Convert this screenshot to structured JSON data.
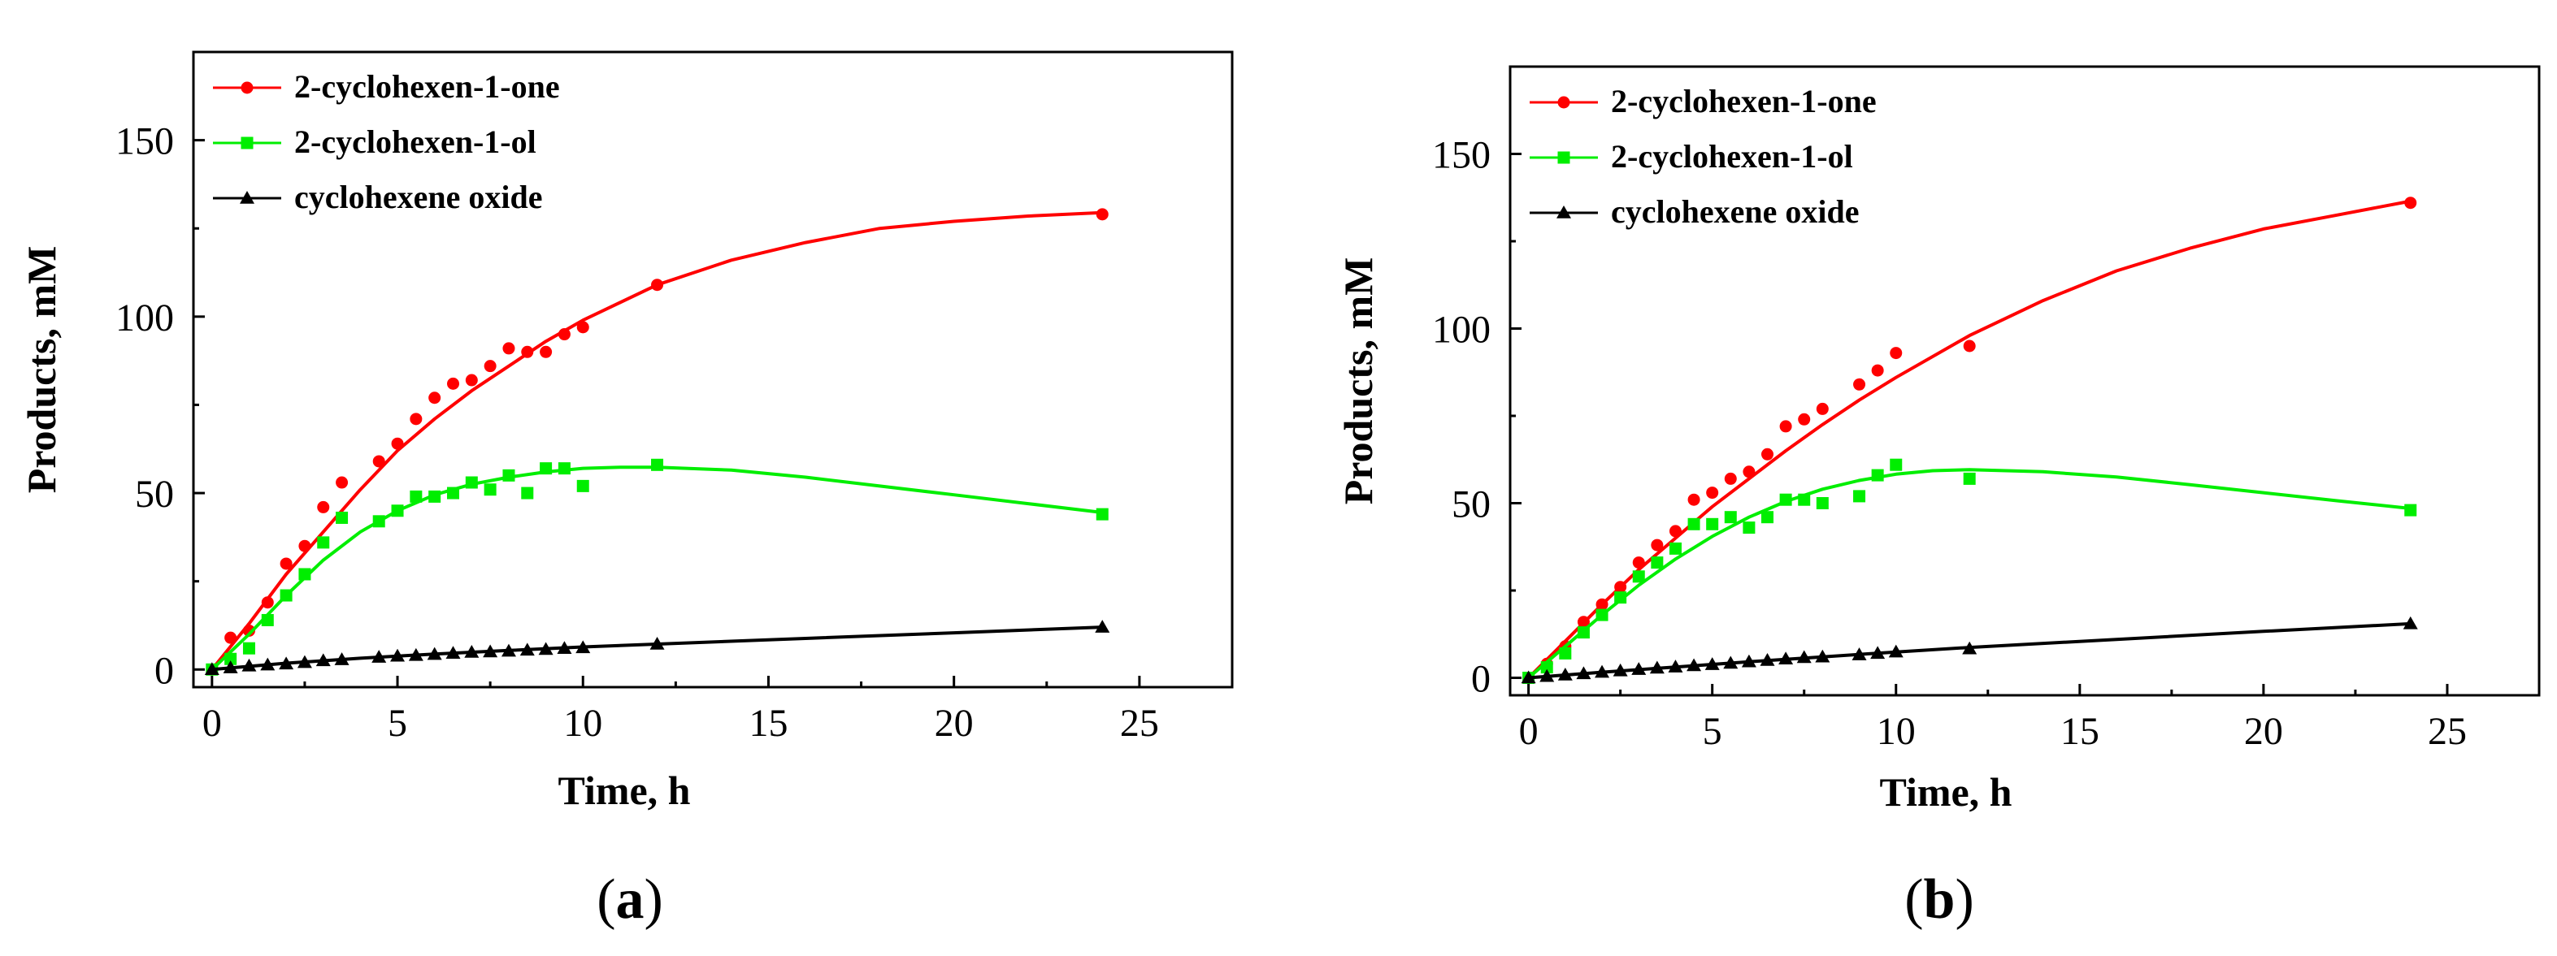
{
  "chart_data": [
    {
      "panel_label": "a",
      "type": "scatter",
      "xlabel": "Time, h",
      "ylabel": "Products, mM",
      "xlim": [
        -0.5,
        27.5
      ],
      "ylim": [
        -5,
        175
      ],
      "xticks": [
        0,
        5,
        10,
        15,
        20,
        25
      ],
      "yticks": [
        0,
        50,
        100,
        150
      ],
      "legend_position": "top-left",
      "series": [
        {
          "name": "2-cyclohexen-1-one",
          "color": "#ff0000",
          "marker": "circle",
          "x": [
            0,
            0.5,
            1,
            1.5,
            2,
            2.5,
            3,
            3.5,
            4.5,
            5,
            5.5,
            6,
            6.5,
            7,
            7.5,
            8,
            8.5,
            9,
            9.5,
            10,
            12,
            24
          ],
          "y": [
            0,
            9,
            11,
            19,
            30,
            35,
            46,
            53,
            59,
            64,
            71,
            77,
            81,
            82,
            86,
            91,
            90,
            90,
            95,
            97,
            109,
            129
          ],
          "fit_x": [
            0,
            1,
            2,
            3,
            4,
            5,
            6,
            7,
            8,
            9,
            10,
            12,
            14,
            16,
            18,
            20,
            22,
            24
          ],
          "fit_y": [
            0,
            13,
            27,
            39,
            51,
            62,
            71,
            79,
            86,
            93,
            99,
            109,
            116,
            121,
            125,
            127,
            128.5,
            129.5
          ]
        },
        {
          "name": "2-cyclohexen-1-ol",
          "color": "#00ee00",
          "marker": "square",
          "x": [
            0,
            0.5,
            1,
            1.5,
            2,
            2.5,
            3,
            3.5,
            4.5,
            5,
            5.5,
            6,
            6.5,
            7,
            7.5,
            8,
            8.5,
            9,
            9.5,
            10,
            12,
            24
          ],
          "y": [
            0,
            3,
            6,
            14,
            21,
            27,
            36,
            43,
            42,
            45,
            49,
            49,
            50,
            53,
            51,
            55,
            50,
            57,
            57,
            52,
            58,
            44
          ],
          "fit_x": [
            0,
            1,
            2,
            3,
            4,
            5,
            6,
            7,
            8,
            9,
            10,
            11,
            12,
            14,
            16,
            18,
            20,
            22,
            24
          ],
          "fit_y": [
            0,
            10,
            21,
            31,
            39,
            45,
            49.5,
            52.5,
            54.5,
            56,
            57,
            57.3,
            57.3,
            56.5,
            54.5,
            52,
            49.5,
            47,
            44.5
          ]
        },
        {
          "name": "cyclohexene oxide",
          "color": "#000000",
          "marker": "triangle",
          "x": [
            0,
            0.5,
            1,
            1.5,
            2,
            2.5,
            3,
            3.5,
            4.5,
            5,
            5.5,
            6,
            6.5,
            7,
            7.5,
            8,
            8.5,
            9,
            9.5,
            10,
            12,
            24
          ],
          "y": [
            0,
            0.5,
            1,
            1.3,
            1.6,
            2,
            2.5,
            2.8,
            3.5,
            3.8,
            4,
            4.3,
            4.6,
            4.9,
            5,
            5.2,
            5.5,
            5.7,
            6,
            6.2,
            7.2,
            12
          ],
          "fit_x": [
            0,
            2,
            4,
            6,
            8,
            10,
            12,
            16,
            20,
            24
          ],
          "fit_y": [
            0,
            1.8,
            3.2,
            4.4,
            5.4,
            6.4,
            7.2,
            8.8,
            10.4,
            12
          ]
        }
      ]
    },
    {
      "panel_label": "b",
      "type": "scatter",
      "xlabel": "Time, h",
      "ylabel": "Products, mM",
      "xlim": [
        -0.5,
        27.5
      ],
      "ylim": [
        -5,
        175
      ],
      "xticks": [
        0,
        5,
        10,
        15,
        20,
        25
      ],
      "yticks": [
        0,
        50,
        100,
        150
      ],
      "legend_position": "top-left",
      "series": [
        {
          "name": "2-cyclohexen-1-one",
          "color": "#ff0000",
          "marker": "circle",
          "x": [
            0,
            0.5,
            1,
            1.5,
            2,
            2.5,
            3,
            3.5,
            4,
            4.5,
            5,
            5.5,
            6,
            6.5,
            7,
            7.5,
            8,
            9,
            9.5,
            10,
            12,
            24
          ],
          "y": [
            0,
            4,
            9,
            16,
            21,
            26,
            33,
            38,
            42,
            51,
            53,
            57,
            59,
            64,
            72,
            74,
            77,
            84,
            88,
            93,
            95,
            136
          ],
          "fit_x": [
            0,
            1,
            2,
            3,
            4,
            5,
            6,
            7,
            8,
            9,
            10,
            12,
            14,
            16,
            18,
            20,
            22,
            24
          ],
          "fit_y": [
            0,
            10.5,
            21,
            31,
            40,
            49,
            57,
            65,
            72.5,
            79.5,
            86,
            98,
            108,
            116.5,
            123,
            128.5,
            132.5,
            136.5
          ]
        },
        {
          "name": "2-cyclohexen-1-ol",
          "color": "#00ee00",
          "marker": "square",
          "x": [
            0,
            0.5,
            1,
            1.5,
            2,
            2.5,
            3,
            3.5,
            4,
            4.5,
            5,
            5.5,
            6,
            6.5,
            7,
            7.5,
            8,
            9,
            9.5,
            10,
            12,
            24
          ],
          "y": [
            0,
            3,
            7,
            13,
            18,
            23,
            29,
            33,
            37,
            44,
            44,
            46,
            43,
            46,
            51,
            51,
            50,
            52,
            58,
            61,
            57,
            48
          ],
          "fit_x": [
            0,
            1,
            2,
            3,
            4,
            5,
            6,
            7,
            8,
            9,
            10,
            11,
            12,
            14,
            16,
            18,
            20,
            22,
            24
          ],
          "fit_y": [
            0,
            9,
            18,
            26.5,
            34,
            40.5,
            46,
            50.5,
            54,
            56.5,
            58.3,
            59.3,
            59.6,
            59,
            57.5,
            55.3,
            53,
            50.7,
            48.5
          ]
        },
        {
          "name": "cyclohexene oxide",
          "color": "#000000",
          "marker": "triangle",
          "x": [
            0,
            0.5,
            1,
            1.5,
            2,
            2.5,
            3,
            3.5,
            4,
            4.5,
            5,
            5.5,
            6,
            6.5,
            7,
            7.5,
            8,
            9,
            9.5,
            10,
            12,
            24
          ],
          "y": [
            0,
            0.4,
            0.8,
            1.2,
            1.6,
            2,
            2.4,
            2.8,
            3.1,
            3.5,
            3.8,
            4.2,
            4.6,
            5,
            5.4,
            5.8,
            6,
            6.6,
            7,
            7.4,
            8.3,
            15.5
          ],
          "fit_x": [
            0,
            2,
            4,
            6,
            8,
            10,
            12,
            16,
            20,
            24
          ],
          "fit_y": [
            0,
            1.6,
            3.1,
            4.6,
            6,
            7.4,
            8.7,
            11,
            13.3,
            15.5
          ]
        }
      ]
    }
  ]
}
